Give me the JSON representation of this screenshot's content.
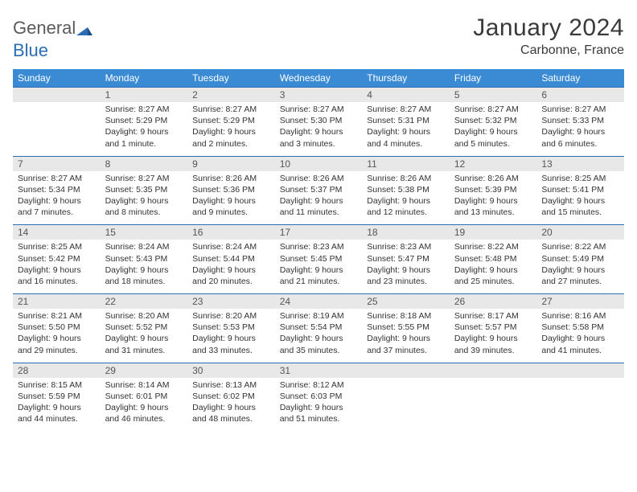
{
  "logo": {
    "word1": "General",
    "word2": "Blue"
  },
  "title": "January 2024",
  "location": "Carbonne, France",
  "colors": {
    "header_bg": "#3b8bd4",
    "header_text": "#ffffff",
    "daynum_bg": "#e8e8e8",
    "daynum_text": "#555555",
    "detail_text": "#333333",
    "rule": "#2a6db5",
    "logo_gray": "#5a5a5a",
    "logo_blue": "#2a6db5"
  },
  "weekdays": [
    "Sunday",
    "Monday",
    "Tuesday",
    "Wednesday",
    "Thursday",
    "Friday",
    "Saturday"
  ],
  "weeks": [
    {
      "nums": [
        "",
        "1",
        "2",
        "3",
        "4",
        "5",
        "6"
      ],
      "cells": [
        {
          "sr": "",
          "ss": "",
          "dl1": "",
          "dl2": ""
        },
        {
          "sr": "Sunrise: 8:27 AM",
          "ss": "Sunset: 5:29 PM",
          "dl1": "Daylight: 9 hours",
          "dl2": "and 1 minute."
        },
        {
          "sr": "Sunrise: 8:27 AM",
          "ss": "Sunset: 5:29 PM",
          "dl1": "Daylight: 9 hours",
          "dl2": "and 2 minutes."
        },
        {
          "sr": "Sunrise: 8:27 AM",
          "ss": "Sunset: 5:30 PM",
          "dl1": "Daylight: 9 hours",
          "dl2": "and 3 minutes."
        },
        {
          "sr": "Sunrise: 8:27 AM",
          "ss": "Sunset: 5:31 PM",
          "dl1": "Daylight: 9 hours",
          "dl2": "and 4 minutes."
        },
        {
          "sr": "Sunrise: 8:27 AM",
          "ss": "Sunset: 5:32 PM",
          "dl1": "Daylight: 9 hours",
          "dl2": "and 5 minutes."
        },
        {
          "sr": "Sunrise: 8:27 AM",
          "ss": "Sunset: 5:33 PM",
          "dl1": "Daylight: 9 hours",
          "dl2": "and 6 minutes."
        }
      ]
    },
    {
      "nums": [
        "7",
        "8",
        "9",
        "10",
        "11",
        "12",
        "13"
      ],
      "cells": [
        {
          "sr": "Sunrise: 8:27 AM",
          "ss": "Sunset: 5:34 PM",
          "dl1": "Daylight: 9 hours",
          "dl2": "and 7 minutes."
        },
        {
          "sr": "Sunrise: 8:27 AM",
          "ss": "Sunset: 5:35 PM",
          "dl1": "Daylight: 9 hours",
          "dl2": "and 8 minutes."
        },
        {
          "sr": "Sunrise: 8:26 AM",
          "ss": "Sunset: 5:36 PM",
          "dl1": "Daylight: 9 hours",
          "dl2": "and 9 minutes."
        },
        {
          "sr": "Sunrise: 8:26 AM",
          "ss": "Sunset: 5:37 PM",
          "dl1": "Daylight: 9 hours",
          "dl2": "and 11 minutes."
        },
        {
          "sr": "Sunrise: 8:26 AM",
          "ss": "Sunset: 5:38 PM",
          "dl1": "Daylight: 9 hours",
          "dl2": "and 12 minutes."
        },
        {
          "sr": "Sunrise: 8:26 AM",
          "ss": "Sunset: 5:39 PM",
          "dl1": "Daylight: 9 hours",
          "dl2": "and 13 minutes."
        },
        {
          "sr": "Sunrise: 8:25 AM",
          "ss": "Sunset: 5:41 PM",
          "dl1": "Daylight: 9 hours",
          "dl2": "and 15 minutes."
        }
      ]
    },
    {
      "nums": [
        "14",
        "15",
        "16",
        "17",
        "18",
        "19",
        "20"
      ],
      "cells": [
        {
          "sr": "Sunrise: 8:25 AM",
          "ss": "Sunset: 5:42 PM",
          "dl1": "Daylight: 9 hours",
          "dl2": "and 16 minutes."
        },
        {
          "sr": "Sunrise: 8:24 AM",
          "ss": "Sunset: 5:43 PM",
          "dl1": "Daylight: 9 hours",
          "dl2": "and 18 minutes."
        },
        {
          "sr": "Sunrise: 8:24 AM",
          "ss": "Sunset: 5:44 PM",
          "dl1": "Daylight: 9 hours",
          "dl2": "and 20 minutes."
        },
        {
          "sr": "Sunrise: 8:23 AM",
          "ss": "Sunset: 5:45 PM",
          "dl1": "Daylight: 9 hours",
          "dl2": "and 21 minutes."
        },
        {
          "sr": "Sunrise: 8:23 AM",
          "ss": "Sunset: 5:47 PM",
          "dl1": "Daylight: 9 hours",
          "dl2": "and 23 minutes."
        },
        {
          "sr": "Sunrise: 8:22 AM",
          "ss": "Sunset: 5:48 PM",
          "dl1": "Daylight: 9 hours",
          "dl2": "and 25 minutes."
        },
        {
          "sr": "Sunrise: 8:22 AM",
          "ss": "Sunset: 5:49 PM",
          "dl1": "Daylight: 9 hours",
          "dl2": "and 27 minutes."
        }
      ]
    },
    {
      "nums": [
        "21",
        "22",
        "23",
        "24",
        "25",
        "26",
        "27"
      ],
      "cells": [
        {
          "sr": "Sunrise: 8:21 AM",
          "ss": "Sunset: 5:50 PM",
          "dl1": "Daylight: 9 hours",
          "dl2": "and 29 minutes."
        },
        {
          "sr": "Sunrise: 8:20 AM",
          "ss": "Sunset: 5:52 PM",
          "dl1": "Daylight: 9 hours",
          "dl2": "and 31 minutes."
        },
        {
          "sr": "Sunrise: 8:20 AM",
          "ss": "Sunset: 5:53 PM",
          "dl1": "Daylight: 9 hours",
          "dl2": "and 33 minutes."
        },
        {
          "sr": "Sunrise: 8:19 AM",
          "ss": "Sunset: 5:54 PM",
          "dl1": "Daylight: 9 hours",
          "dl2": "and 35 minutes."
        },
        {
          "sr": "Sunrise: 8:18 AM",
          "ss": "Sunset: 5:55 PM",
          "dl1": "Daylight: 9 hours",
          "dl2": "and 37 minutes."
        },
        {
          "sr": "Sunrise: 8:17 AM",
          "ss": "Sunset: 5:57 PM",
          "dl1": "Daylight: 9 hours",
          "dl2": "and 39 minutes."
        },
        {
          "sr": "Sunrise: 8:16 AM",
          "ss": "Sunset: 5:58 PM",
          "dl1": "Daylight: 9 hours",
          "dl2": "and 41 minutes."
        }
      ]
    },
    {
      "nums": [
        "28",
        "29",
        "30",
        "31",
        "",
        "",
        ""
      ],
      "cells": [
        {
          "sr": "Sunrise: 8:15 AM",
          "ss": "Sunset: 5:59 PM",
          "dl1": "Daylight: 9 hours",
          "dl2": "and 44 minutes."
        },
        {
          "sr": "Sunrise: 8:14 AM",
          "ss": "Sunset: 6:01 PM",
          "dl1": "Daylight: 9 hours",
          "dl2": "and 46 minutes."
        },
        {
          "sr": "Sunrise: 8:13 AM",
          "ss": "Sunset: 6:02 PM",
          "dl1": "Daylight: 9 hours",
          "dl2": "and 48 minutes."
        },
        {
          "sr": "Sunrise: 8:12 AM",
          "ss": "Sunset: 6:03 PM",
          "dl1": "Daylight: 9 hours",
          "dl2": "and 51 minutes."
        },
        {
          "sr": "",
          "ss": "",
          "dl1": "",
          "dl2": ""
        },
        {
          "sr": "",
          "ss": "",
          "dl1": "",
          "dl2": ""
        },
        {
          "sr": "",
          "ss": "",
          "dl1": "",
          "dl2": ""
        }
      ]
    }
  ]
}
